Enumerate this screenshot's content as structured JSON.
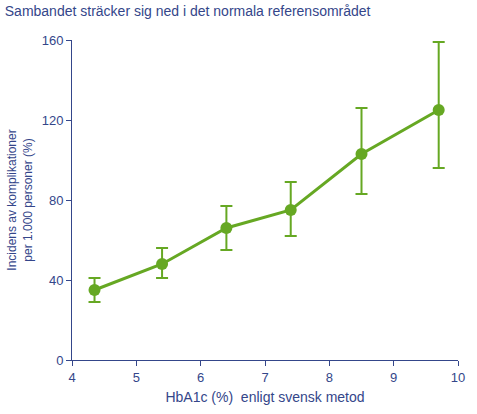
{
  "chart_data": {
    "type": "line",
    "title": "Sambandet sträcker sig ned i det normala referensområdet",
    "x_label": "HbA1c (%)  enligt svensk metod",
    "y_label": [
      "Incidens av komplikationer",
      "per 1.000 personer (%)"
    ],
    "x": [
      4.35,
      5.4,
      6.4,
      7.4,
      8.5,
      9.7
    ],
    "values": [
      35,
      48,
      66,
      75,
      103,
      125
    ],
    "y_low": [
      29,
      41,
      55,
      62,
      83,
      96
    ],
    "y_high": [
      41,
      56,
      77,
      89,
      126,
      159
    ],
    "color": "#66a823",
    "marker": "circle",
    "xlim": [
      4,
      10
    ],
    "xticks": [
      4,
      5,
      6,
      7,
      8,
      9,
      10
    ],
    "ylim": [
      0,
      160
    ],
    "yticks": [
      0,
      40,
      80,
      120,
      160
    ],
    "grid": false
  }
}
